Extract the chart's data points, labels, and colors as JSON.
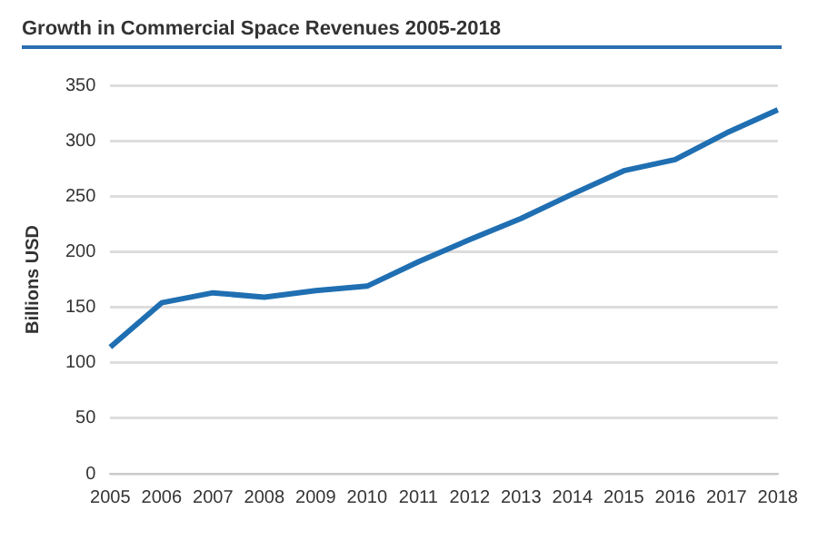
{
  "chart_data": {
    "type": "line",
    "title": "Growth in Commercial Space Revenues 2005-2018",
    "ylabel": "Billions USD",
    "categories": [
      "2005",
      "2006",
      "2007",
      "2008",
      "2009",
      "2010",
      "2011",
      "2012",
      "2013",
      "2014",
      "2015",
      "2016",
      "2017",
      "2018"
    ],
    "series": [
      {
        "color": "#1f6fb2",
        "values": [
          114,
          154,
          163,
          159,
          165,
          169,
          191,
          211,
          230,
          252,
          273,
          283,
          307,
          328
        ]
      }
    ],
    "ylim": [
      0,
      350
    ],
    "yticks": [
      0,
      50,
      100,
      150,
      200,
      250,
      300,
      350
    ],
    "grid": "y",
    "legend": false,
    "marker": "none",
    "line_style": "solid"
  }
}
